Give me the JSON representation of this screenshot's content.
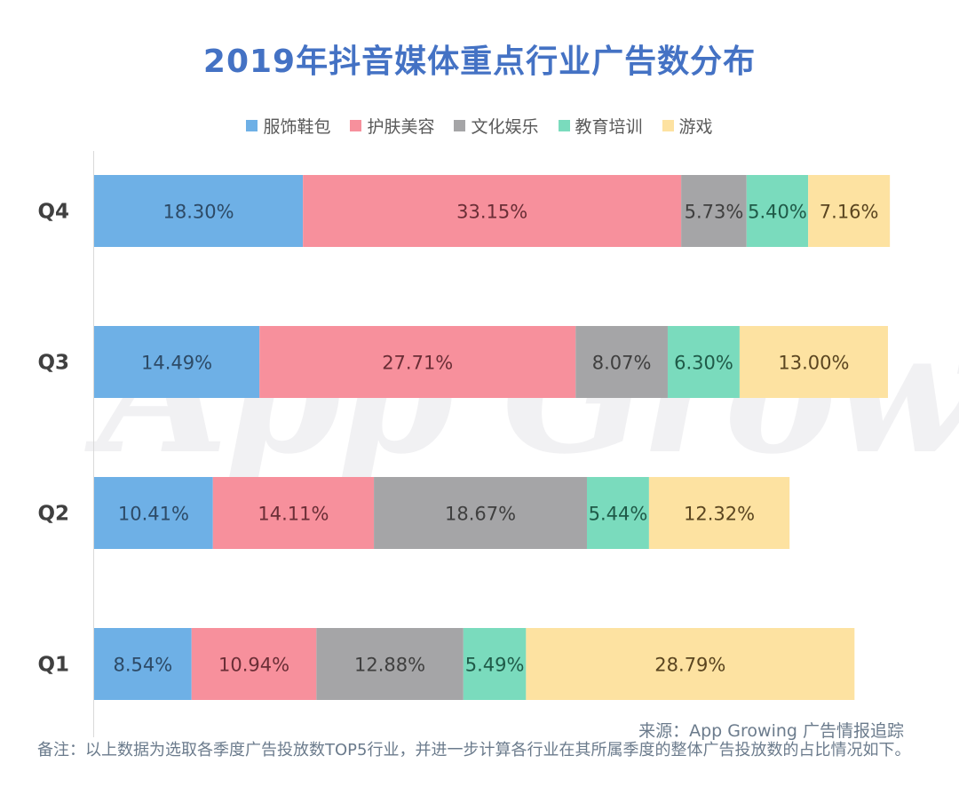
{
  "chart_data": {
    "type": "bar",
    "orientation": "horizontal",
    "stacked": true,
    "title": "2019年抖音媒体重点行业广告数分布",
    "categories": [
      "Q4",
      "Q3",
      "Q2",
      "Q1"
    ],
    "series": [
      {
        "name": "服饰鞋包",
        "color": "#6eb0e6",
        "values": [
          18.3,
          14.49,
          10.41,
          8.54
        ],
        "labels": [
          "18.30%",
          "14.49%",
          "10.41%",
          "8.54%"
        ]
      },
      {
        "name": "护肤美容",
        "color": "#f7909c",
        "values": [
          33.15,
          27.71,
          14.11,
          10.94
        ],
        "labels": [
          "33.15%",
          "27.71%",
          "14.11%",
          "10.94%"
        ]
      },
      {
        "name": "文化娱乐",
        "color": "#a5a5a7",
        "values": [
          5.73,
          8.07,
          18.67,
          12.88
        ],
        "labels": [
          "5.73%",
          "8.07%",
          "18.67%",
          "12.88%"
        ]
      },
      {
        "name": "教育培训",
        "color": "#7adbbd",
        "values": [
          5.4,
          6.3,
          5.44,
          5.49
        ],
        "labels": [
          "5.40%",
          "6.30%",
          "5.44%",
          "5.49%"
        ]
      },
      {
        "name": "游戏",
        "color": "#fde2a1",
        "values": [
          7.16,
          13.0,
          12.32,
          28.79
        ],
        "labels": [
          "7.16%",
          "13.00%",
          "12.32%",
          "28.79%"
        ]
      }
    ],
    "xlabel": "",
    "ylabel": "",
    "grid": false,
    "legend_position": "top",
    "label_color_by_series": [
      "#2d4a66",
      "#6a2e36",
      "#3f3f3f",
      "#1f5a48",
      "#5a4520"
    ]
  },
  "watermark": "App Growing",
  "source": "来源：App Growing 广告情报追踪",
  "note": "备注：以上数据为选取各季度广告投放数TOP5行业，并进一步计算各行业在其所属季度的整体广告投放数的占比情况如下。"
}
